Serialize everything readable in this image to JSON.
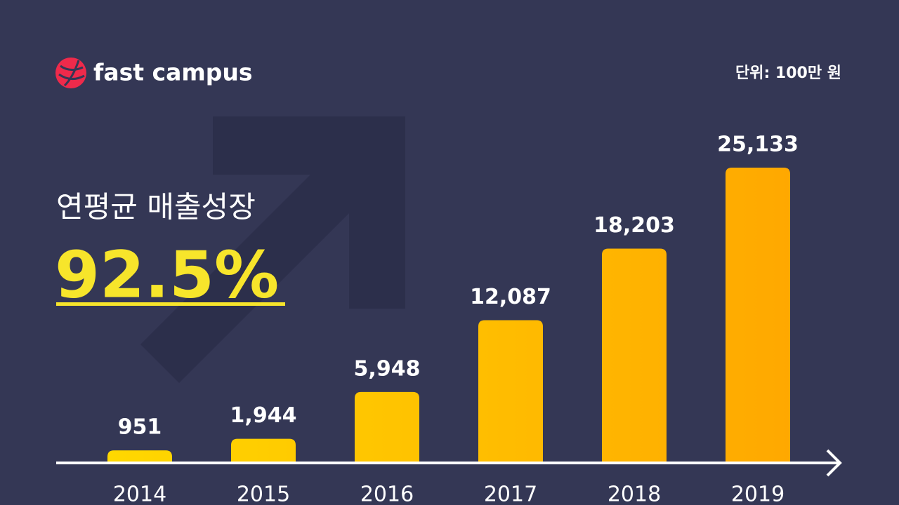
{
  "chart_data": {
    "type": "bar",
    "brand": "fast campus",
    "unit_label": "단위: 100만 원",
    "title": "연평균 매출성장",
    "highlight": "92.5%",
    "categories": [
      "2014",
      "2015",
      "2016",
      "2017",
      "2018",
      "2019"
    ],
    "values": [
      951,
      1944,
      5948,
      12087,
      18203,
      25133
    ],
    "value_labels": [
      "951",
      "1,944",
      "5,948",
      "12,087",
      "18,203",
      "25,133"
    ],
    "gradient": [
      "#FFD800",
      "#FFA800"
    ]
  }
}
